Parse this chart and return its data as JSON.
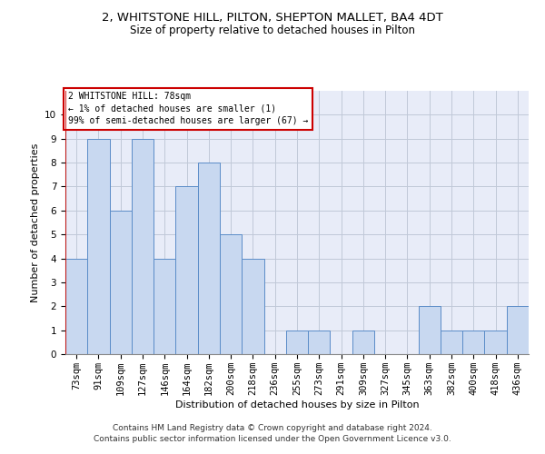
{
  "title": "2, WHITSTONE HILL, PILTON, SHEPTON MALLET, BA4 4DT",
  "subtitle": "Size of property relative to detached houses in Pilton",
  "xlabel": "Distribution of detached houses by size in Pilton",
  "ylabel": "Number of detached properties",
  "categories": [
    "73sqm",
    "91sqm",
    "109sqm",
    "127sqm",
    "146sqm",
    "164sqm",
    "182sqm",
    "200sqm",
    "218sqm",
    "236sqm",
    "255sqm",
    "273sqm",
    "291sqm",
    "309sqm",
    "327sqm",
    "345sqm",
    "363sqm",
    "382sqm",
    "400sqm",
    "418sqm",
    "436sqm"
  ],
  "values": [
    4,
    9,
    6,
    9,
    4,
    7,
    8,
    5,
    4,
    0,
    1,
    1,
    0,
    1,
    0,
    0,
    2,
    1,
    1,
    1,
    2
  ],
  "bar_color": "#c8d8f0",
  "bar_edge_color": "#5b8cc8",
  "grid_color": "#c0c8d8",
  "background_color": "#e8ecf8",
  "annotation_text": "2 WHITSTONE HILL: 78sqm\n← 1% of detached houses are smaller (1)\n99% of semi-detached houses are larger (67) →",
  "annotation_box_color": "#ffffff",
  "annotation_border_color": "#cc0000",
  "footer_text": "Contains HM Land Registry data © Crown copyright and database right 2024.\nContains public sector information licensed under the Open Government Licence v3.0.",
  "ylim": [
    0,
    11
  ],
  "yticks": [
    0,
    1,
    2,
    3,
    4,
    5,
    6,
    7,
    8,
    9,
    10
  ],
  "title_fontsize": 9.5,
  "subtitle_fontsize": 8.5,
  "axis_label_fontsize": 8,
  "tick_fontsize": 7.5,
  "annotation_fontsize": 7,
  "footer_fontsize": 6.5,
  "highlight_bar_color": "#cc0000"
}
